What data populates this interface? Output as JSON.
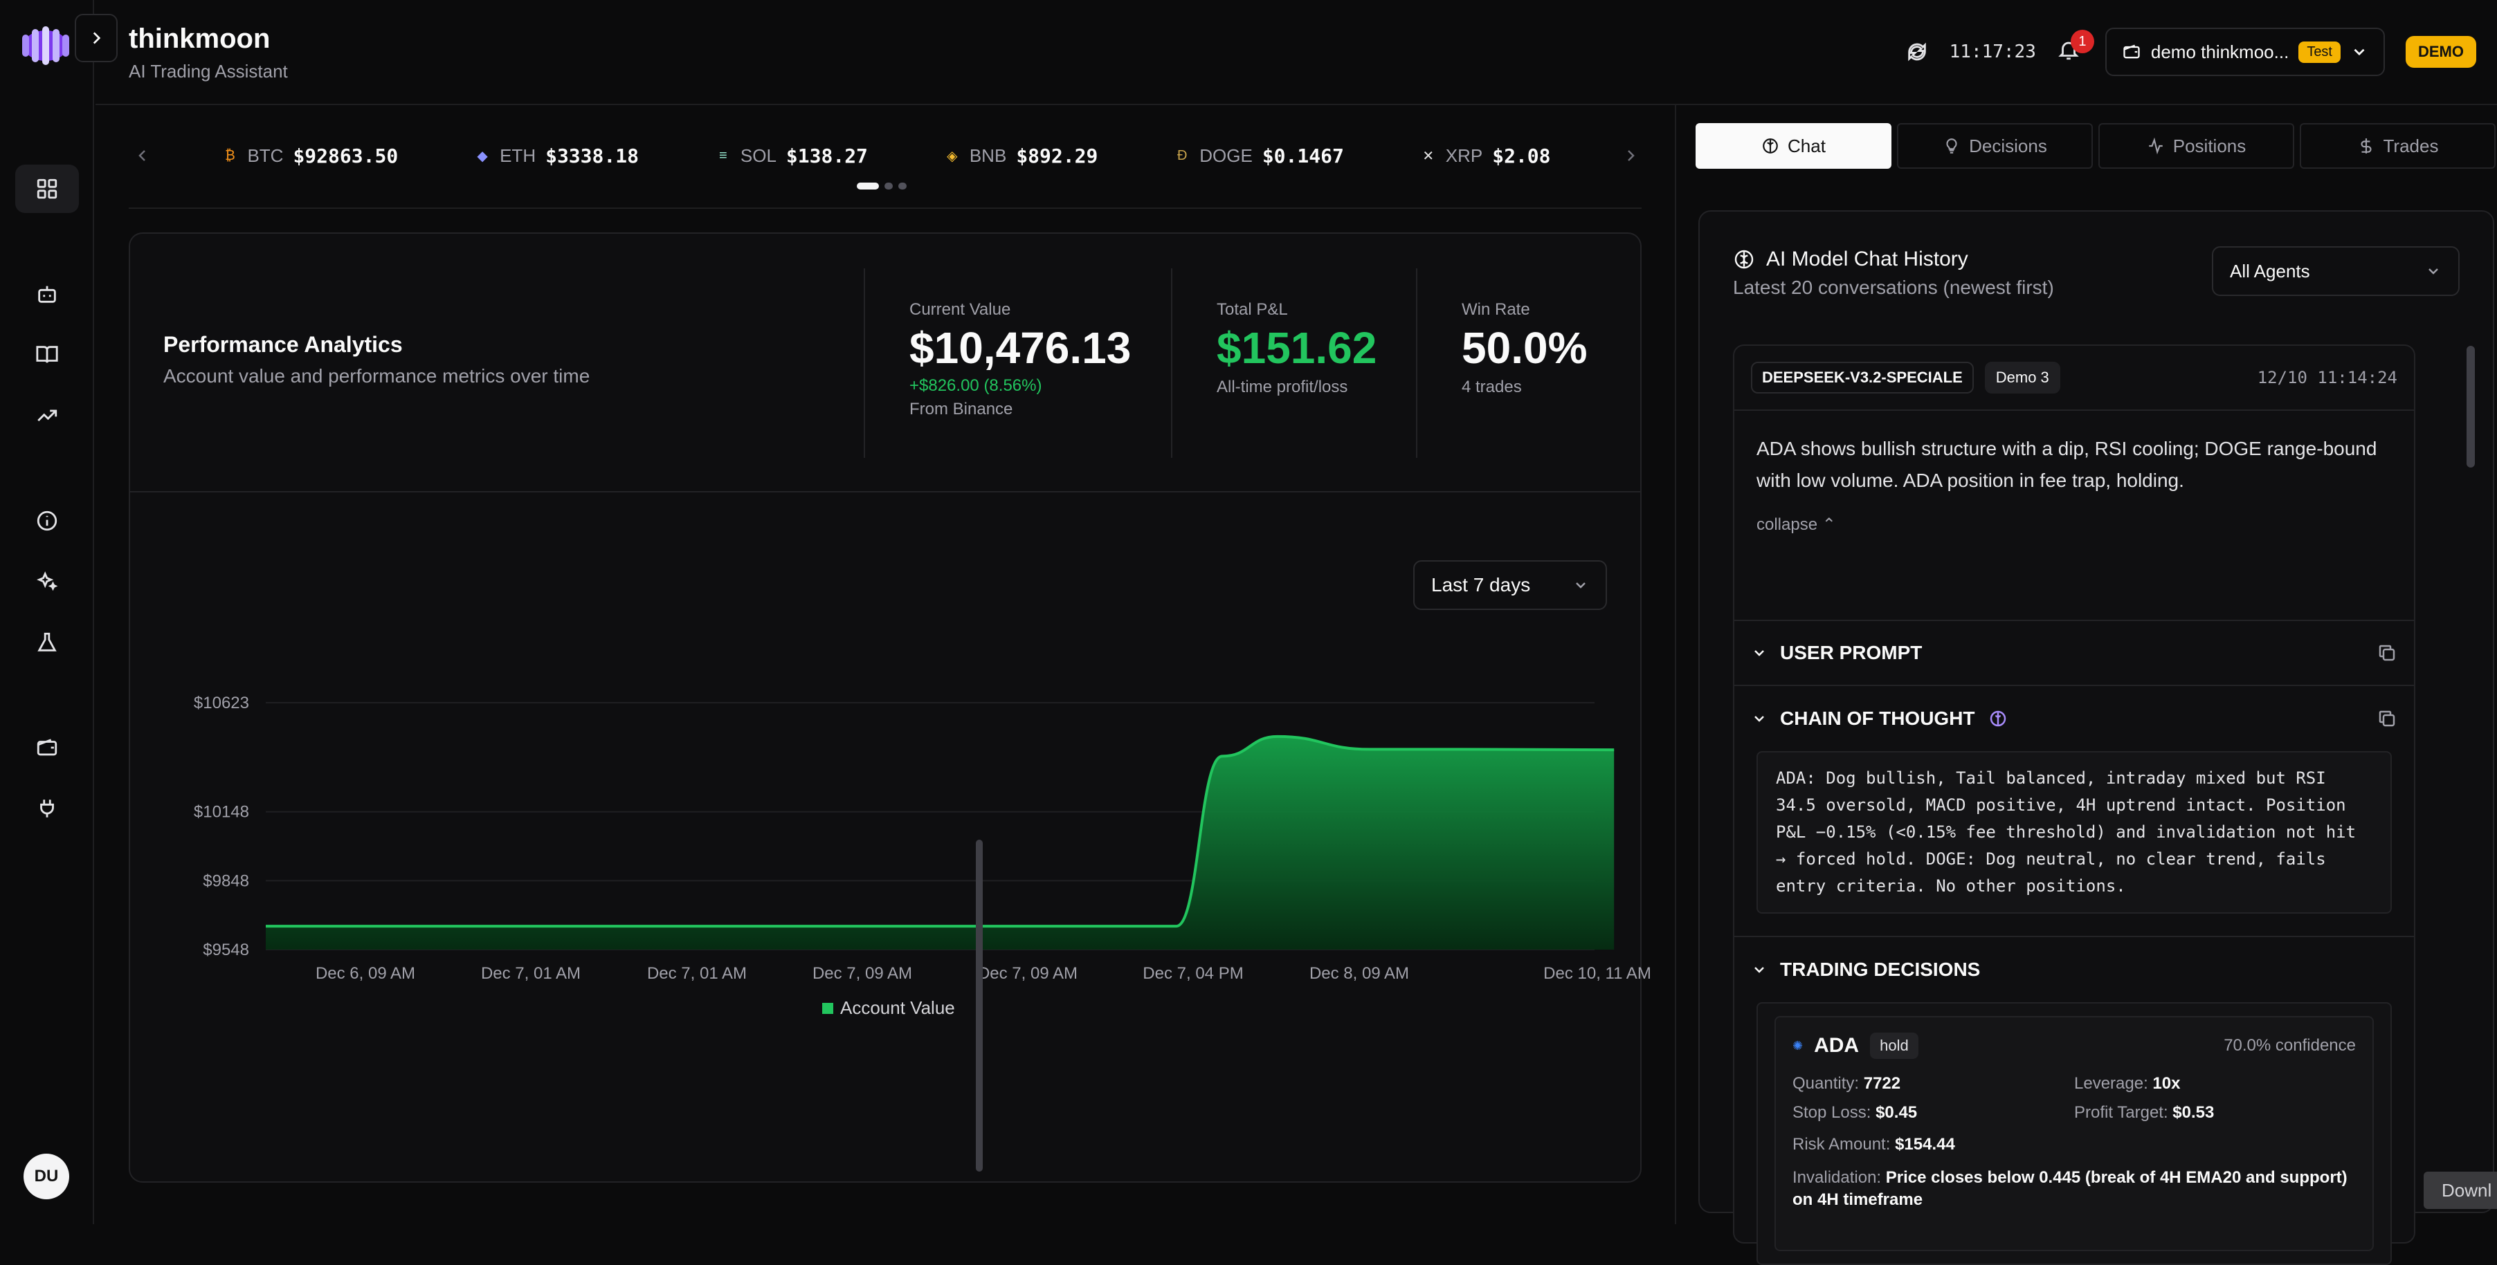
{
  "app": {
    "title": "thinkmoon",
    "subtitle": "AI Trading Assistant"
  },
  "header": {
    "time": "11:17:23",
    "notifications": "1",
    "account_label": "demo thinkmoo...",
    "account_tag": "Test",
    "mode_badge": "DEMO"
  },
  "sidebar": {
    "avatar": "DU"
  },
  "ticker": [
    {
      "symbol": "BTC",
      "price": "$92863.50",
      "icon": "bitcoin-icon",
      "color": "#f7931a"
    },
    {
      "symbol": "ETH",
      "price": "$3338.18",
      "icon": "ethereum-icon",
      "color": "#8a92ff"
    },
    {
      "symbol": "SOL",
      "price": "$138.27",
      "icon": "solana-icon",
      "color": "#9ef0d8"
    },
    {
      "symbol": "BNB",
      "price": "$892.29",
      "icon": "bnb-icon",
      "color": "#f3ba2f"
    },
    {
      "symbol": "DOGE",
      "price": "$0.1467",
      "icon": "doge-icon",
      "color": "#c9a44c"
    },
    {
      "symbol": "XRP",
      "price": "$2.08",
      "icon": "xrp-icon",
      "color": "#e5e5e5"
    }
  ],
  "performance": {
    "title": "Performance Analytics",
    "subtitle": "Account value and performance metrics over time",
    "current_value": {
      "label": "Current Value",
      "value": "$10,476.13",
      "delta": "+$826.00 (8.56%)",
      "source": "From Binance"
    },
    "total_pnl": {
      "label": "Total P&L",
      "value": "$151.62",
      "sub": "All-time profit/loss"
    },
    "win_rate": {
      "label": "Win Rate",
      "value": "50.0%",
      "sub": "4 trades"
    },
    "range": "Last 7 days"
  },
  "chart_data": {
    "type": "area",
    "x": [
      "Dec 6, 09 AM",
      "Dec 7, 01 AM",
      "Dec 7, 01 AM",
      "Dec 7, 09 AM",
      "Dec 7, 09 AM",
      "Dec 7, 04 PM",
      "Dec 8, 09 AM",
      "Dec 10, 11 AM"
    ],
    "y_ticks": [
      "$10623",
      "$10148",
      "$9848",
      "$9548"
    ],
    "y_tick_values": [
      10623,
      10148,
      9848,
      9548
    ],
    "ylim": [
      9548,
      10623
    ],
    "series": [
      {
        "name": "Account Value",
        "color": "#22c55e",
        "points": [
          [
            0,
            9650
          ],
          [
            4.5,
            9650
          ],
          [
            4.95,
            9650
          ],
          [
            5.2,
            10390
          ],
          [
            5.5,
            10476
          ],
          [
            6.0,
            10420
          ],
          [
            6.5,
            10420
          ],
          [
            7.33,
            10418
          ]
        ]
      }
    ],
    "legend": "bottom-center",
    "grid": true
  },
  "right_panel": {
    "tabs": [
      {
        "label": "Chat",
        "icon": "brain-icon",
        "active": true
      },
      {
        "label": "Decisions",
        "icon": "lightbulb-icon",
        "active": false
      },
      {
        "label": "Positions",
        "icon": "activity-icon",
        "active": false
      },
      {
        "label": "Trades",
        "icon": "dollar-icon",
        "active": false
      }
    ],
    "chat_title": "AI Model Chat History",
    "chat_subtitle": "Latest 20 conversations (newest first)",
    "agent_filter": "All Agents",
    "conversation": {
      "model": "DEEPSEEK-V3.2-SPECIALE",
      "account": "Demo 3",
      "time": "12/10 11:14:24",
      "summary": "ADA shows bullish structure with a dip, RSI cooling; DOGE range-bound with low volume. ADA position in fee trap, holding.",
      "collapse": "collapse",
      "user_prompt": "USER PROMPT",
      "chain_title": "CHAIN OF THOUGHT",
      "chain_text": "ADA: Dog bullish, Tail balanced, intraday mixed but RSI\n34.5 oversold, MACD positive, 4H uptrend intact. Position\nP&L −0.15% (<0.15% fee threshold) and invalidation not hit\n→ forced hold. DOGE: Dog neutral, no clear trend, fails\nentry criteria. No other positions.",
      "decisions_title": "TRADING DECISIONS",
      "decision": {
        "symbol": "ADA",
        "action": "hold",
        "confidence": "70.0% confidence",
        "quantity_label": "Quantity:",
        "quantity": "7722",
        "leverage_label": "Leverage:",
        "leverage": "10x",
        "stop_label": "Stop Loss:",
        "stop": "$0.45",
        "target_label": "Profit Target:",
        "target": "$0.53",
        "risk_label": "Risk Amount:",
        "risk": "$154.44",
        "invalid_label": "Invalidation:",
        "invalid": "Price closes below 0.445 (break of 4H EMA20 and support) on 4H timeframe"
      }
    }
  },
  "download_label": "Downl"
}
